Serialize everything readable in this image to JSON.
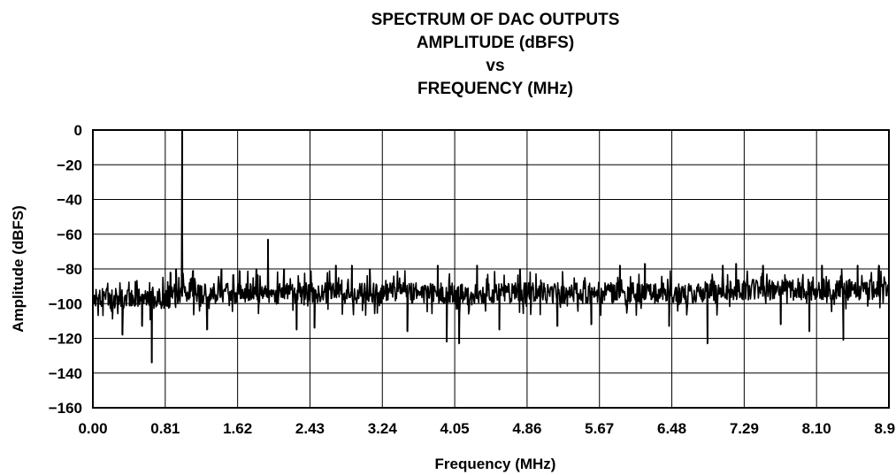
{
  "chart_data": {
    "type": "line",
    "title_lines": [
      "SPECTRUM OF DAC OUTPUTS",
      "AMPLITUDE (dBFS)",
      "vs",
      "FREQUENCY (MHz)"
    ],
    "xlabel": "Frequency (MHz)",
    "ylabel": "Amplitude (dBFS)",
    "xlim": [
      0,
      8.91
    ],
    "ylim": [
      -160,
      0
    ],
    "x_ticks": [
      "0.00",
      "0.81",
      "1.62",
      "2.43",
      "3.24",
      "4.05",
      "4.86",
      "5.67",
      "6.48",
      "7.29",
      "8.10",
      "8.91"
    ],
    "y_ticks": [
      "0",
      "−20",
      "−40",
      "−60",
      "−80",
      "−100",
      "−120",
      "−140",
      "−160"
    ],
    "grid": true,
    "line_color": "#000000",
    "noise_floor": {
      "mean": -94,
      "low_freq_mean": -97,
      "rising_mean_above_7mhz": -92
    },
    "peaks": [
      {
        "x": 1.0,
        "y": 0
      },
      {
        "x": 1.96,
        "y": -63
      },
      {
        "x": 0.66,
        "y": -134
      },
      {
        "x": 0.33,
        "y": -118
      },
      {
        "x": 0.55,
        "y": -113
      },
      {
        "x": 0.87,
        "y": -82
      },
      {
        "x": 0.93,
        "y": -80
      },
      {
        "x": 1.12,
        "y": -81
      },
      {
        "x": 1.28,
        "y": -115
      },
      {
        "x": 1.44,
        "y": -80
      },
      {
        "x": 1.83,
        "y": -80
      },
      {
        "x": 2.14,
        "y": -80
      },
      {
        "x": 2.28,
        "y": -115
      },
      {
        "x": 2.48,
        "y": -114
      },
      {
        "x": 2.72,
        "y": -78
      },
      {
        "x": 2.9,
        "y": -78
      },
      {
        "x": 3.1,
        "y": -80
      },
      {
        "x": 3.52,
        "y": -116
      },
      {
        "x": 3.86,
        "y": -78
      },
      {
        "x": 3.96,
        "y": -122
      },
      {
        "x": 4.1,
        "y": -123
      },
      {
        "x": 4.3,
        "y": -78
      },
      {
        "x": 4.55,
        "y": -115
      },
      {
        "x": 4.78,
        "y": -80
      },
      {
        "x": 5.2,
        "y": -113
      },
      {
        "x": 5.58,
        "y": -112
      },
      {
        "x": 5.9,
        "y": -78
      },
      {
        "x": 6.18,
        "y": -77
      },
      {
        "x": 6.45,
        "y": -113
      },
      {
        "x": 6.88,
        "y": -123
      },
      {
        "x": 7.05,
        "y": -78
      },
      {
        "x": 7.2,
        "y": -77
      },
      {
        "x": 7.5,
        "y": -78
      },
      {
        "x": 7.7,
        "y": -112
      },
      {
        "x": 8.02,
        "y": -116
      },
      {
        "x": 8.16,
        "y": -78
      },
      {
        "x": 8.4,
        "y": -121
      },
      {
        "x": 8.56,
        "y": -78
      },
      {
        "x": 8.8,
        "y": -78
      }
    ]
  }
}
